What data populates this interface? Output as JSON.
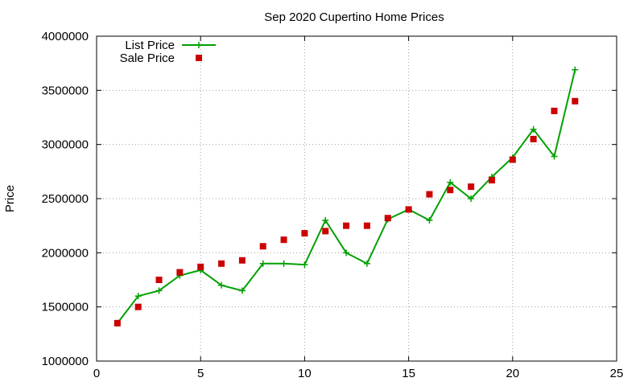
{
  "chart_data": {
    "type": "line",
    "title": "Sep 2020 Cupertino Home Prices",
    "xlabel": "",
    "ylabel": "Price",
    "xlim": [
      0,
      25
    ],
    "ylim": [
      1000000,
      4000000
    ],
    "xticks": [
      0,
      5,
      10,
      15,
      20,
      25
    ],
    "yticks": [
      1000000,
      1500000,
      2000000,
      2500000,
      3000000,
      3500000,
      4000000
    ],
    "grid": true,
    "legend_position": "top-left",
    "series": [
      {
        "name": "List Price",
        "style": "line-plus",
        "color": "#00a000",
        "x": [
          1,
          2,
          3,
          4,
          5,
          6,
          7,
          8,
          9,
          10,
          11,
          12,
          13,
          14,
          15,
          16,
          17,
          18,
          19,
          20,
          21,
          22,
          23
        ],
        "y": [
          1350000,
          1600000,
          1650000,
          1790000,
          1840000,
          1700000,
          1650000,
          1900000,
          1900000,
          1890000,
          2300000,
          2000000,
          1900000,
          2310000,
          2400000,
          2300000,
          2650000,
          2500000,
          2700000,
          2880000,
          3140000,
          2890000,
          3690000
        ]
      },
      {
        "name": "Sale Price",
        "style": "square-markers",
        "color": "#cc0000",
        "x": [
          1,
          2,
          3,
          4,
          5,
          6,
          7,
          8,
          9,
          10,
          11,
          12,
          13,
          14,
          15,
          16,
          17,
          18,
          19,
          20,
          21,
          22,
          23
        ],
        "y": [
          1350000,
          1500000,
          1750000,
          1820000,
          1870000,
          1900000,
          1930000,
          2060000,
          2120000,
          2180000,
          2200000,
          2250000,
          2250000,
          2320000,
          2400000,
          2540000,
          2580000,
          2610000,
          2670000,
          2860000,
          3050000,
          3310000,
          3400000
        ]
      }
    ]
  }
}
